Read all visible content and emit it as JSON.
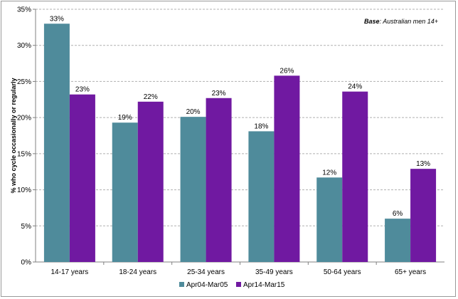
{
  "chart_data": {
    "type": "bar",
    "categories": [
      "14-17 years",
      "18-24 years",
      "25-34 years",
      "35-49 years",
      "50-64 years",
      "65+ years"
    ],
    "series": [
      {
        "name": "Apr04-Mar05",
        "values": [
          33,
          19.3,
          20.1,
          18.1,
          11.7,
          6
        ],
        "labels": [
          "33%",
          "19%",
          "20%",
          "18%",
          "12%",
          "6%"
        ],
        "color": "#4f8b9b"
      },
      {
        "name": "Apr14-Mar15",
        "values": [
          23.2,
          22.2,
          22.7,
          25.8,
          23.6,
          12.9
        ],
        "labels": [
          "23%",
          "22%",
          "23%",
          "26%",
          "24%",
          "13%"
        ],
        "color": "#7019a1"
      }
    ],
    "ylabel": "% who cycle occasionally or regularly",
    "xlabel": "",
    "ylim": [
      0,
      35
    ],
    "yticks": [
      0,
      5,
      10,
      15,
      20,
      25,
      30,
      35
    ],
    "ytick_labels": [
      "0%",
      "5%",
      "10%",
      "15%",
      "20%",
      "25%",
      "30%",
      "35%"
    ],
    "grid": true,
    "legend_position": "bottom"
  },
  "annotation": {
    "bold": "Base",
    "text": ": Australian men 14+"
  }
}
